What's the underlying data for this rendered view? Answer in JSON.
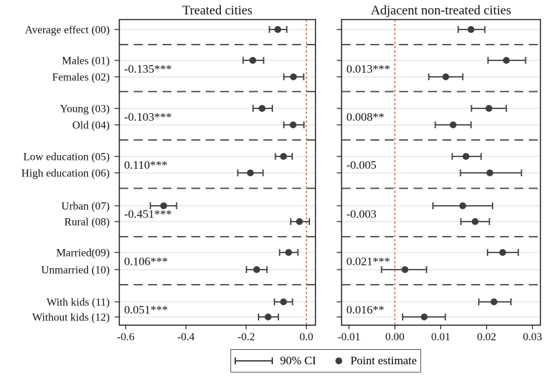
{
  "chart_data": {
    "type": "forest",
    "description": "Coefficient (point estimate) plot with 90% confidence intervals, two panels sharing category axis",
    "categories": [
      "Average effect (00)",
      "Males (01)",
      "Females (02)",
      "Young (03)",
      "Old (04)",
      "Low education (05)",
      "High education (06)",
      "Urban (07)",
      "Rural (08)",
      "Married(09)",
      "Unmarried (10)",
      "With kids (11)",
      "Without kids (12)"
    ],
    "group_separators_after_category_index": [
      0,
      2,
      4,
      6,
      8,
      10
    ],
    "legend": [
      "90% CI",
      "Point estimate"
    ],
    "colors": {
      "point": "#3d3d3d",
      "ci": "#3d3d3d",
      "zero_line": "#e4532c",
      "annotation": "#2323c8",
      "gridline": "#dcdcdc",
      "separator": "#3f3f3f",
      "border": "#1a1a1a"
    },
    "panels": [
      {
        "title": "Treated cities",
        "xtick_labels": [
          "-0.6",
          "-0.4",
          "-0.2",
          "0.0"
        ],
        "xtick_values": [
          -0.6,
          -0.4,
          -0.2,
          0.0
        ],
        "xlim": [
          -0.62,
          0.03
        ],
        "zero_line": 0.0,
        "rows": [
          {
            "category": "Average effect (00)",
            "estimate": -0.095,
            "ci90": [
              -0.123,
              -0.065
            ]
          },
          {
            "category": "Males (01)",
            "estimate": -0.178,
            "ci90": [
              -0.21,
              -0.142
            ]
          },
          {
            "category": "Females (02)",
            "estimate": -0.043,
            "ci90": [
              -0.075,
              -0.009
            ]
          },
          {
            "category": "Young (03)",
            "estimate": -0.147,
            "ci90": [
              -0.177,
              -0.113
            ]
          },
          {
            "category": "Old (04)",
            "estimate": -0.044,
            "ci90": [
              -0.075,
              -0.008
            ]
          },
          {
            "category": "Low education (05)",
            "estimate": -0.076,
            "ci90": [
              -0.103,
              -0.047
            ]
          },
          {
            "category": "High education (06)",
            "estimate": -0.186,
            "ci90": [
              -0.228,
              -0.144
            ]
          },
          {
            "category": "Urban (07)",
            "estimate": -0.474,
            "ci90": [
              -0.518,
              -0.431
            ]
          },
          {
            "category": "Rural (08)",
            "estimate": -0.023,
            "ci90": [
              -0.052,
              0.01
            ]
          },
          {
            "category": "Married(09)",
            "estimate": -0.059,
            "ci90": [
              -0.089,
              -0.028
            ]
          },
          {
            "category": "Unmarried (10)",
            "estimate": -0.165,
            "ci90": [
              -0.199,
              -0.131
            ]
          },
          {
            "category": "With kids (11)",
            "estimate": -0.076,
            "ci90": [
              -0.106,
              -0.046
            ]
          },
          {
            "category": "Without kids (12)",
            "estimate": -0.127,
            "ci90": [
              -0.159,
              -0.093
            ]
          }
        ],
        "pair_difference_annotations": [
          "-0.135***",
          "-0.103***",
          "0.110***",
          "-0.451***",
          "0.106***",
          "0.051***"
        ]
      },
      {
        "title": "Adjacent non-treated cities",
        "xtick_labels": [
          "-0.01",
          "0.00",
          "0.01",
          "0.02",
          "0.03"
        ],
        "xtick_values": [
          -0.01,
          0.0,
          0.01,
          0.02,
          0.03
        ],
        "xlim": [
          -0.0116,
          0.0317
        ],
        "zero_line": 0.0,
        "rows": [
          {
            "category": "Average effect (00)",
            "estimate": 0.0166,
            "ci90": [
              0.0138,
              0.0196
            ]
          },
          {
            "category": "Males (01)",
            "estimate": 0.0243,
            "ci90": [
              0.0203,
              0.0285
            ]
          },
          {
            "category": "Females (02)",
            "estimate": 0.0111,
            "ci90": [
              0.0074,
              0.0148
            ]
          },
          {
            "category": "Young (03)",
            "estimate": 0.0205,
            "ci90": [
              0.0167,
              0.0243
            ]
          },
          {
            "category": "Old (04)",
            "estimate": 0.0127,
            "ci90": [
              0.0088,
              0.0166
            ]
          },
          {
            "category": "Low education (05)",
            "estimate": 0.0155,
            "ci90": [
              0.0125,
              0.0188
            ]
          },
          {
            "category": "High education (06)",
            "estimate": 0.0207,
            "ci90": [
              0.0143,
              0.0276
            ]
          },
          {
            "category": "Urban (07)",
            "estimate": 0.0148,
            "ci90": [
              0.0083,
              0.0213
            ]
          },
          {
            "category": "Rural (08)",
            "estimate": 0.0175,
            "ci90": [
              0.0144,
              0.0206
            ]
          },
          {
            "category": "Married(09)",
            "estimate": 0.0235,
            "ci90": [
              0.0202,
              0.0269
            ]
          },
          {
            "category": "Unmarried (10)",
            "estimate": 0.0022,
            "ci90": [
              -0.0029,
              0.0069
            ]
          },
          {
            "category": "With kids (11)",
            "estimate": 0.0216,
            "ci90": [
              0.0183,
              0.0253
            ]
          },
          {
            "category": "Without kids (12)",
            "estimate": 0.0064,
            "ci90": [
              0.0017,
              0.011
            ]
          }
        ],
        "pair_difference_annotations": [
          "0.013***",
          "0.008**",
          "-0.005",
          "-0.003",
          "0.021***",
          "0.016**"
        ]
      }
    ]
  }
}
